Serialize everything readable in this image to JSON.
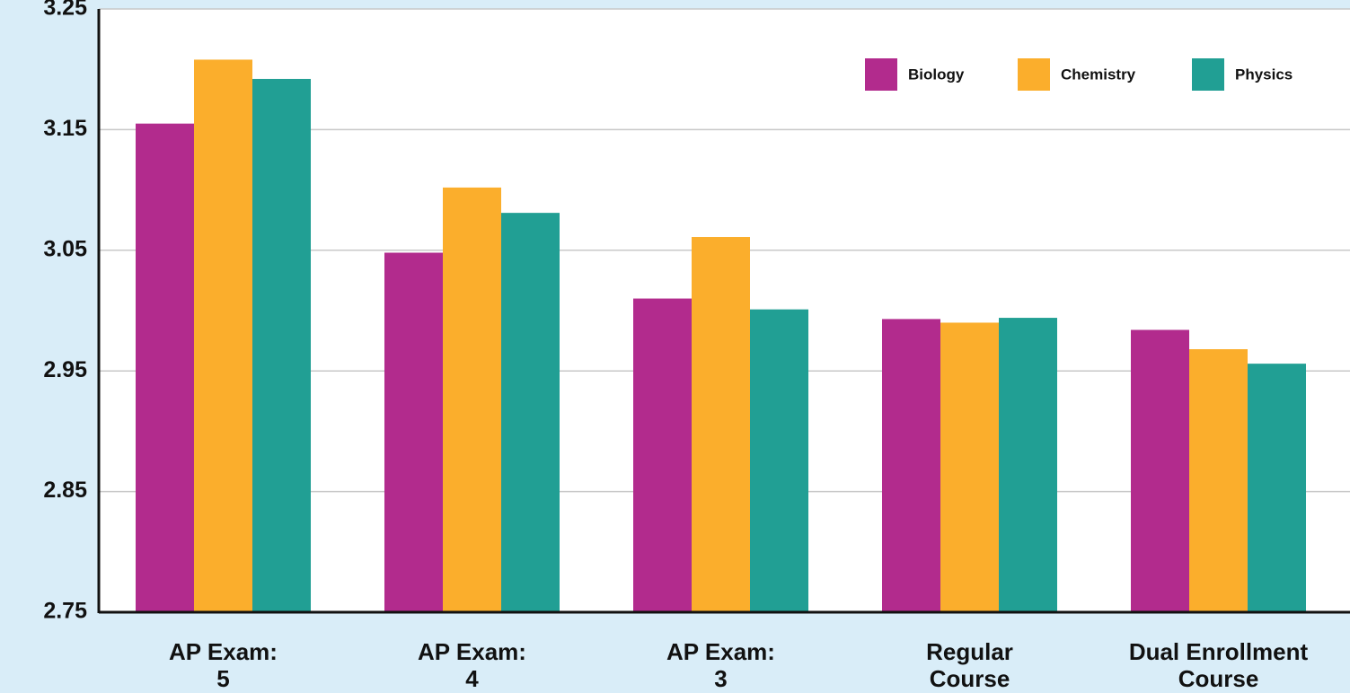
{
  "chart_data": {
    "type": "bar",
    "categories": [
      "AP Exam:\n5",
      "AP Exam:\n4",
      "AP Exam:\n3",
      "Regular\nCourse",
      "Dual Enrollment\nCourse"
    ],
    "series": [
      {
        "name": "Biology",
        "color": "#b22b8d",
        "values": [
          3.155,
          3.048,
          3.01,
          2.993,
          2.984
        ]
      },
      {
        "name": "Chemistry",
        "color": "#fbae2c",
        "values": [
          3.208,
          3.102,
          3.061,
          2.99,
          2.968
        ]
      },
      {
        "name": "Physics",
        "color": "#219f94",
        "values": [
          3.192,
          3.081,
          3.001,
          2.994,
          2.956
        ]
      }
    ],
    "ylim": [
      2.75,
      3.25
    ],
    "yticks": [
      2.75,
      2.85,
      2.95,
      3.05,
      3.15,
      3.25
    ],
    "grid": true,
    "legend": "top-right"
  }
}
